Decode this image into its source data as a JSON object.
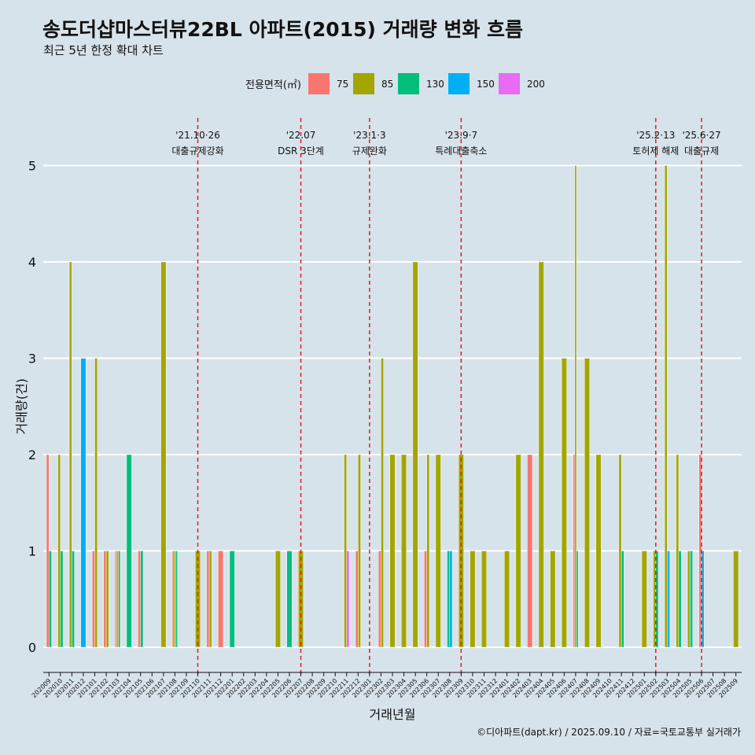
{
  "header": {
    "title": "송도더샵마스터뷰22BL 아파트(2015) 거래량 변화 흐름",
    "subtitle": "최근 5년 한정 확대 차트"
  },
  "footer": {
    "caption": "©디아파트(dapt.kr) / 2025.09.10 / 자료=국토교통부 실거래가"
  },
  "colors": {
    "background": "#d6e3ea",
    "grid": "#ffffff",
    "event_line": "#e41a1c",
    "75": "#f8766d",
    "85": "#a3a500",
    "130": "#00bf7d",
    "150": "#00b0f6",
    "200": "#e76bf3"
  },
  "chart_data": {
    "type": "bar",
    "xlabel": "거래년월",
    "ylabel": "거래량(건)",
    "ylim": [
      0,
      5
    ],
    "yticks": [
      0,
      1,
      2,
      3,
      4,
      5
    ],
    "grid": true,
    "legend_title": "전용면적(㎡)",
    "legend_position": "top",
    "categories": [
      "202009",
      "202010",
      "202011",
      "202012",
      "202101",
      "202102",
      "202103",
      "202104",
      "202105",
      "202106",
      "202107",
      "202108",
      "202109",
      "202110",
      "202111",
      "202112",
      "202201",
      "202202",
      "202203",
      "202204",
      "202205",
      "202206",
      "202207",
      "202208",
      "202209",
      "202210",
      "202211",
      "202212",
      "202301",
      "202302",
      "202303",
      "202304",
      "202305",
      "202306",
      "202307",
      "202308",
      "202309",
      "202310",
      "202311",
      "202312",
      "202401",
      "202402",
      "202403",
      "202404",
      "202405",
      "202406",
      "202407",
      "202408",
      "202409",
      "202410",
      "202411",
      "202412",
      "202501",
      "202502",
      "202503",
      "202504",
      "202505",
      "202506",
      "202507",
      "202508",
      "202509"
    ],
    "series": [
      {
        "name": "75",
        "values": [
          2,
          0,
          0,
          0,
          1,
          1,
          1,
          0,
          1,
          0,
          0,
          1,
          0,
          0,
          1,
          1,
          0,
          0,
          0,
          0,
          0,
          0,
          0,
          0,
          0,
          0,
          0,
          1,
          0,
          1,
          0,
          0,
          0,
          1,
          0,
          0,
          0,
          0,
          0,
          0,
          0,
          0,
          2,
          0,
          0,
          0,
          2,
          0,
          0,
          0,
          0,
          0,
          0,
          0,
          0,
          0,
          0,
          2,
          0,
          0,
          0
        ]
      },
      {
        "name": "85",
        "values": [
          0,
          2,
          4,
          0,
          3,
          1,
          1,
          0,
          0,
          0,
          4,
          1,
          0,
          1,
          1,
          0,
          0,
          0,
          0,
          0,
          1,
          0,
          1,
          0,
          0,
          0,
          2,
          2,
          0,
          3,
          2,
          2,
          4,
          2,
          2,
          0,
          2,
          1,
          1,
          0,
          1,
          2,
          0,
          4,
          1,
          3,
          5,
          3,
          2,
          0,
          2,
          0,
          1,
          1,
          5,
          2,
          1,
          0,
          0,
          0,
          1
        ]
      },
      {
        "name": "130",
        "values": [
          1,
          1,
          1,
          0,
          0,
          0,
          1,
          2,
          1,
          0,
          0,
          1,
          0,
          0,
          0,
          0,
          1,
          0,
          0,
          0,
          0,
          1,
          0,
          0,
          0,
          0,
          0,
          0,
          0,
          0,
          0,
          0,
          0,
          0,
          0,
          1,
          0,
          0,
          0,
          0,
          0,
          0,
          0,
          0,
          0,
          0,
          1,
          0,
          0,
          0,
          1,
          0,
          0,
          1,
          0,
          1,
          1,
          0,
          0,
          0,
          0
        ]
      },
      {
        "name": "150",
        "values": [
          0,
          0,
          0,
          3,
          0,
          0,
          0,
          0,
          0,
          0,
          0,
          0,
          0,
          0,
          0,
          0,
          0,
          0,
          0,
          0,
          0,
          0,
          0,
          0,
          0,
          0,
          0,
          0,
          0,
          0,
          0,
          0,
          0,
          0,
          0,
          1,
          0,
          0,
          0,
          0,
          0,
          0,
          0,
          0,
          0,
          0,
          0,
          0,
          0,
          0,
          0,
          0,
          0,
          0,
          1,
          0,
          0,
          1,
          0,
          0,
          0
        ]
      },
      {
        "name": "200",
        "values": [
          0,
          0,
          0,
          0,
          0,
          0,
          0,
          0,
          0,
          0,
          0,
          0,
          0,
          0,
          0,
          0,
          0,
          0,
          0,
          0,
          0,
          0,
          0,
          0,
          0,
          0,
          1,
          0,
          0,
          0,
          0,
          0,
          0,
          0,
          0,
          0,
          0,
          0,
          0,
          0,
          0,
          0,
          0,
          0,
          0,
          0,
          0,
          0,
          0,
          0,
          0,
          0,
          0,
          0,
          0,
          0,
          0,
          0,
          0,
          0,
          0
        ]
      }
    ],
    "annotations": [
      {
        "x": "202110",
        "date": "'21.10·26",
        "label": "대출규제강화"
      },
      {
        "x": "202207",
        "date": "'22.07",
        "label": "DSR 3단계"
      },
      {
        "x": "202301",
        "date": "'23.1·3",
        "label": "규제완화"
      },
      {
        "x": "202309",
        "date": "'23.9·7",
        "label": "특례대출축소"
      },
      {
        "x": "202502",
        "date": "'25.2·13",
        "label": "토허제 해제"
      },
      {
        "x": "202506",
        "date": "'25.6·27",
        "label": "대출규제"
      }
    ]
  }
}
